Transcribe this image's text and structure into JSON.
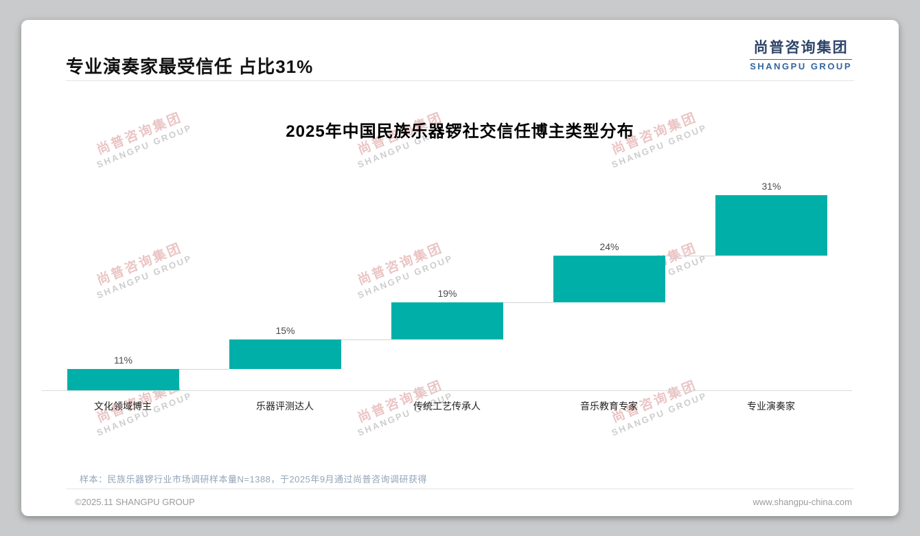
{
  "header": {
    "title": "专业演奏家最受信任 占比31%",
    "logo": {
      "cn": "尚普咨询集团",
      "en": "SHANGPU GROUP"
    }
  },
  "chart_data": {
    "type": "bar",
    "variant": "ascending-waterfall-steps",
    "title": "2025年中国民族乐器锣社交信任博主类型分布",
    "categories": [
      "文化领域博主",
      "乐器评测达人",
      "传统工艺传承人",
      "音乐教育专家",
      "专业演奏家"
    ],
    "values": [
      11,
      15,
      19,
      24,
      31
    ],
    "unit": "%",
    "bar_color": "#00b0a8",
    "value_label_color": "#4a4a4a",
    "xlabel": "",
    "ylabel": "",
    "ylim": [
      0,
      100
    ],
    "grid": false,
    "legend": "none"
  },
  "watermark": {
    "cn": "尚普咨询集团",
    "en": "SHANGPU GROUP"
  },
  "footnote": "样本：民族乐器锣行业市场调研样本量N=1388，于2025年9月通过尚普咨询调研获得",
  "footer": {
    "left": "©2025.11 SHANGPU GROUP",
    "right": "www.shangpu-china.com"
  }
}
